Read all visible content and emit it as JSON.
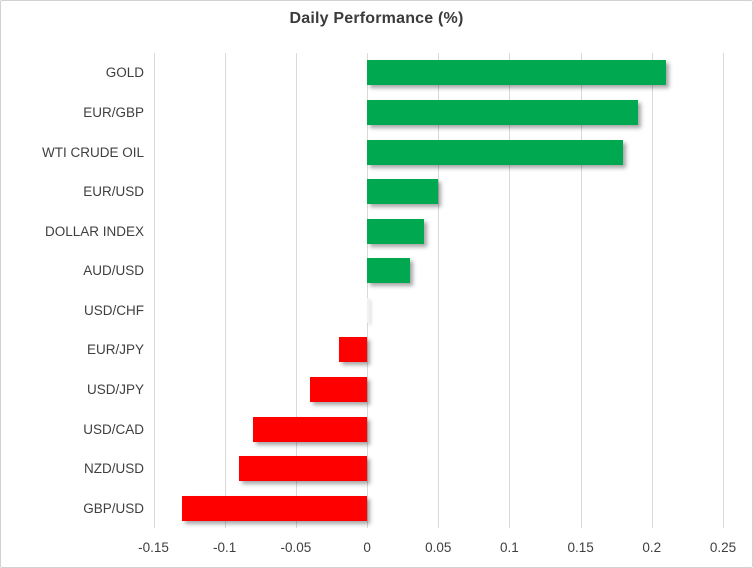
{
  "chart_data": {
    "type": "bar",
    "orientation": "horizontal",
    "title": "Daily Performance (%)",
    "categories": [
      "GOLD",
      "EUR/GBP",
      "WTI CRUDE OIL",
      "EUR/USD",
      "DOLLAR INDEX",
      "AUD/USD",
      "USD/CHF",
      "EUR/JPY",
      "USD/JPY",
      "USD/CAD",
      "NZD/USD",
      "GBP/USD"
    ],
    "values": [
      0.21,
      0.19,
      0.18,
      0.05,
      0.04,
      0.03,
      0.0,
      -0.02,
      -0.04,
      -0.08,
      -0.09,
      -0.13
    ],
    "xlabel": "",
    "ylabel": "",
    "xlim": [
      -0.15,
      0.25
    ],
    "x_ticks": [
      -0.15,
      -0.1,
      -0.05,
      0,
      0.05,
      0.1,
      0.15,
      0.2,
      0.25
    ],
    "x_tick_labels": [
      "-0.15",
      "-0.1",
      "-0.05",
      "0",
      "0.05",
      "0.1",
      "0.15",
      "0.2",
      "0.25"
    ],
    "grid": "vertical-on",
    "legend": "none",
    "colors": {
      "positive_bar": "#00a94f",
      "negative_bar": "#ff0000",
      "gridline": "#d9d9d9",
      "title_text": "#3b3b3b",
      "axis_text": "#3f3f3f",
      "chart_border": "#d2d2d2"
    }
  }
}
